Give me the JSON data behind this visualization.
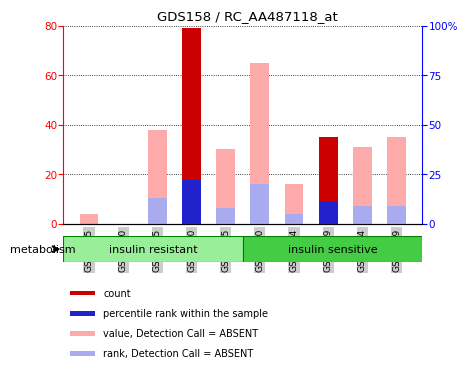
{
  "title": "GDS158 / RC_AA487118_at",
  "samples": [
    "GSM2285",
    "GSM2290",
    "GSM2295",
    "GSM2300",
    "GSM2305",
    "GSM2310",
    "GSM2314",
    "GSM2319",
    "GSM2324",
    "GSM2329"
  ],
  "count_values": [
    0,
    0,
    0,
    79,
    0,
    0,
    0,
    35,
    0,
    0
  ],
  "rank_values": [
    0,
    0,
    0,
    22,
    0,
    0,
    0,
    11,
    0,
    0
  ],
  "value_absent": [
    4,
    0,
    38,
    0,
    30,
    65,
    16,
    0,
    31,
    35
  ],
  "rank_absent": [
    0,
    0,
    13,
    9,
    8,
    20,
    5,
    9,
    9,
    9
  ],
  "ylim_left": [
    0,
    80
  ],
  "ylim_right": [
    0,
    100
  ],
  "yticks_left": [
    0,
    20,
    40,
    60,
    80
  ],
  "yticks_right": [
    0,
    25,
    50,
    75,
    100
  ],
  "ytick_labels_right": [
    "0",
    "25",
    "50",
    "75",
    "100%"
  ],
  "color_count": "#cc0000",
  "color_rank": "#2222cc",
  "color_value_absent": "#ffaaaa",
  "color_rank_absent": "#aaaaee",
  "color_bg": "#ffffff",
  "group1_label": "insulin resistant",
  "group2_label": "insulin sensitive",
  "group1_color": "#99ee99",
  "group2_color": "#44cc44",
  "row_label": "metabolism",
  "bar_width": 0.55,
  "legend_items": [
    {
      "color": "#cc0000",
      "label": "count"
    },
    {
      "color": "#2222cc",
      "label": "percentile rank within the sample"
    },
    {
      "color": "#ffaaaa",
      "label": "value, Detection Call = ABSENT"
    },
    {
      "color": "#aaaaee",
      "label": "rank, Detection Call = ABSENT"
    }
  ]
}
